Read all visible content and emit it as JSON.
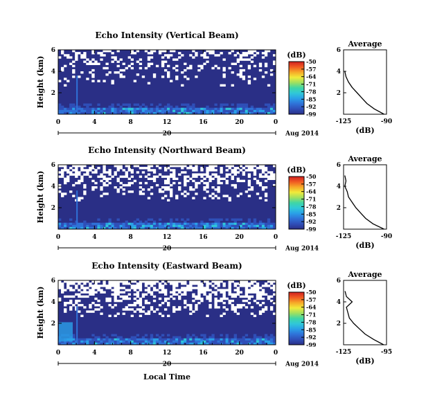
{
  "figure": {
    "xlabel_bottom": "Local Time",
    "date_label": "Aug 2014"
  },
  "colormap": [
    "#2a2f86",
    "#2f4fb8",
    "#2f72d8",
    "#2aa0e8",
    "#30c8d8",
    "#3fd6a6",
    "#9fe060",
    "#f1ea3a",
    "#f6a828",
    "#f05a22",
    "#d02020"
  ],
  "chart_data": [
    {
      "type": "heatmap",
      "title": "Echo Intensity (Vertical Beam)",
      "ylabel": "Height (km)",
      "ylim": [
        0,
        6
      ],
      "yticks": [
        "2",
        "4",
        "6"
      ],
      "xlim": [
        0,
        24
      ],
      "xticks": [
        "0",
        "4",
        "8",
        "12",
        "16",
        "20",
        "0"
      ],
      "date_ticklabel": "20",
      "colorbar": {
        "unit": "(dB)",
        "ticks": [
          "-50",
          "-57",
          "-64",
          "-71",
          "-78",
          "-85",
          "-92",
          "-99"
        ],
        "range": [
          -99,
          -50
        ]
      },
      "average_profile": {
        "title": "Average",
        "xlabel": "(dB)",
        "xlim": [
          -125,
          -90
        ],
        "xticks": [
          "-125",
          "-90"
        ],
        "ylim": [
          0,
          6
        ],
        "yticks": [
          "2",
          "4",
          "6"
        ],
        "height_km": [
          0.0,
          0.5,
          1.0,
          1.5,
          2.0,
          2.5,
          3.0,
          3.5,
          4.0
        ],
        "db": [
          -92,
          -100,
          -106,
          -110,
          -114,
          -118,
          -121,
          -123,
          -124
        ]
      }
    },
    {
      "type": "heatmap",
      "title": "Echo Intensity (Northward Beam)",
      "ylabel": "Height (km)",
      "ylim": [
        0,
        6
      ],
      "yticks": [
        "2",
        "4",
        "6"
      ],
      "xlim": [
        0,
        24
      ],
      "xticks": [
        "0",
        "4",
        "8",
        "12",
        "16",
        "20",
        "0"
      ],
      "date_ticklabel": "20",
      "colorbar": {
        "unit": "(dB)",
        "ticks": [
          "-50",
          "-57",
          "-64",
          "-71",
          "-78",
          "-85",
          "-92",
          "-99"
        ],
        "range": [
          -99,
          -50
        ]
      },
      "average_profile": {
        "title": "Average",
        "xlabel": "(dB)",
        "xlim": [
          -125,
          -90
        ],
        "xticks": [
          "-125",
          "-90"
        ],
        "ylim": [
          0,
          6
        ],
        "yticks": [
          "2",
          "4",
          "6"
        ],
        "height_km": [
          0.0,
          0.5,
          1.0,
          1.5,
          2.0,
          2.5,
          3.0,
          3.5,
          4.0,
          4.5,
          5.0
        ],
        "db": [
          -92,
          -101,
          -107,
          -111,
          -115,
          -118,
          -121,
          -122,
          -124,
          -123,
          -124
        ]
      }
    },
    {
      "type": "heatmap",
      "title": "Echo Intensity (Eastward Beam)",
      "ylabel": "Height (km)",
      "ylim": [
        0,
        6
      ],
      "yticks": [
        "2",
        "4",
        "6"
      ],
      "xlim": [
        0,
        24
      ],
      "xticks": [
        "0",
        "4",
        "8",
        "12",
        "16",
        "20",
        "0"
      ],
      "date_ticklabel": "20",
      "colorbar": {
        "unit": "(dB)",
        "ticks": [
          "-50",
          "-57",
          "-64",
          "-71",
          "-78",
          "-85",
          "-92",
          "-99"
        ],
        "range": [
          -99,
          -50
        ]
      },
      "average_profile": {
        "title": "Average",
        "xlabel": "(dB)",
        "xlim": [
          -125,
          -95
        ],
        "xticks": [
          "-125",
          "-95"
        ],
        "ylim": [
          0,
          6
        ],
        "yticks": [
          "2",
          "4",
          "6"
        ],
        "height_km": [
          0.0,
          0.5,
          1.0,
          1.5,
          2.0,
          2.5,
          3.0,
          3.5,
          4.0,
          4.5,
          5.0
        ],
        "db": [
          -97,
          -104,
          -110,
          -114,
          -118,
          -121,
          -122,
          -123,
          -119,
          -123,
          -124
        ]
      }
    }
  ]
}
